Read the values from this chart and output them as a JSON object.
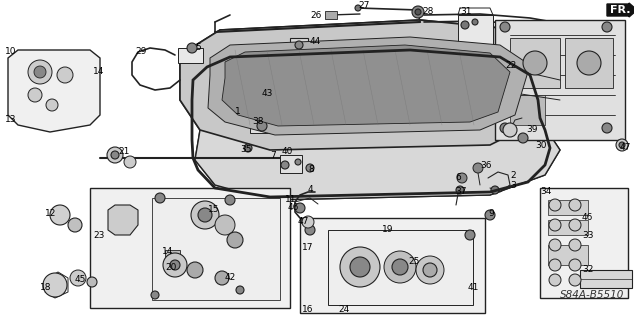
{
  "bg_color": "#ffffff",
  "diagram_code": "S84A-B5510",
  "fr_label": "FR.",
  "fig_width": 6.34,
  "fig_height": 3.2,
  "dpi": 100,
  "line_color": "#222222",
  "label_fontsize": 6.5,
  "code_fontsize": 7.5
}
